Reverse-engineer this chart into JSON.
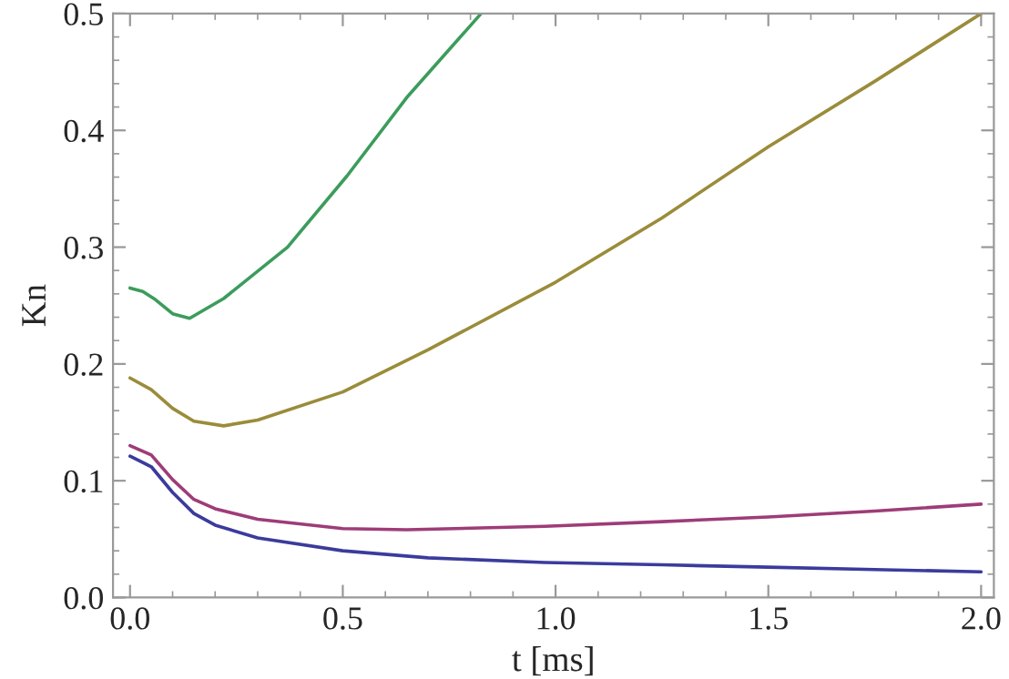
{
  "chart_data": {
    "type": "line",
    "xlabel": "t [ms]",
    "ylabel": "Kn",
    "xlim": [
      -0.04,
      2.03
    ],
    "ylim": [
      0.0,
      0.5
    ],
    "xticks": [
      {
        "value": 0,
        "label": "0.0"
      },
      0.5,
      {
        "value": 1,
        "label": "1.0"
      },
      1.5,
      {
        "value": 2,
        "label": "2.0"
      }
    ],
    "yticks": [
      {
        "value": 0,
        "label": "0.0"
      },
      0.1,
      0.2,
      0.3,
      0.4,
      0.5
    ],
    "grid": false,
    "legend": false,
    "marker": "none",
    "line_style": "solid",
    "series": [
      {
        "color": "#3b3b9d",
        "x": [
          0,
          0.05,
          0.1,
          0.15,
          0.2,
          0.3,
          0.5,
          0.7,
          0.975,
          1.25,
          1.5,
          1.75,
          2.0
        ],
        "values": [
          0.121,
          0.112,
          0.09,
          0.072,
          0.062,
          0.051,
          0.04,
          0.034,
          0.03,
          0.028,
          0.026,
          0.024,
          0.022
        ]
      },
      {
        "color": "#9e3c78",
        "x": [
          0,
          0.05,
          0.1,
          0.15,
          0.2,
          0.3,
          0.5,
          0.65,
          0.975,
          1.25,
          1.5,
          1.75,
          2.0
        ],
        "values": [
          0.13,
          0.122,
          0.101,
          0.084,
          0.076,
          0.067,
          0.059,
          0.058,
          0.061,
          0.065,
          0.069,
          0.074,
          0.08
        ]
      },
      {
        "color": "#9a8c3a",
        "x": [
          0,
          0.05,
          0.1,
          0.15,
          0.22,
          0.3,
          0.5,
          0.7,
          1.0,
          1.25,
          1.5,
          1.75,
          2.0
        ],
        "values": [
          0.188,
          0.178,
          0.162,
          0.151,
          0.147,
          0.152,
          0.176,
          0.212,
          0.27,
          0.325,
          0.386,
          0.442,
          0.5
        ]
      },
      {
        "color": "#3c9c5c",
        "x": [
          0,
          0.03,
          0.06,
          0.1,
          0.14,
          0.22,
          0.37,
          0.51,
          0.65,
          0.825
        ],
        "values": [
          0.265,
          0.262,
          0.255,
          0.243,
          0.239,
          0.256,
          0.3,
          0.361,
          0.428,
          0.5
        ]
      }
    ]
  }
}
